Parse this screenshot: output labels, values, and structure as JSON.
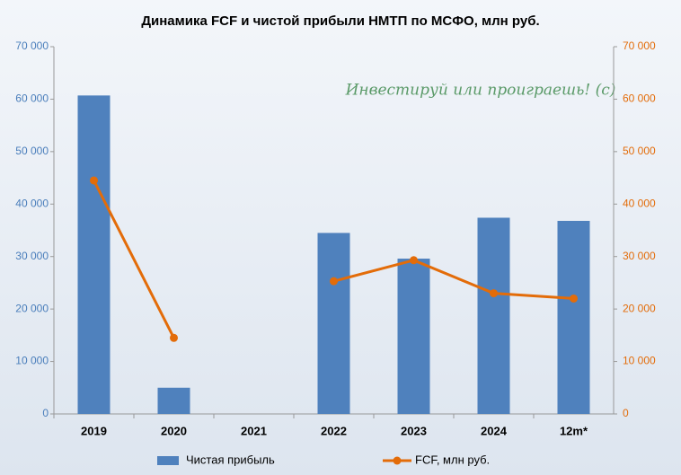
{
  "chart_data": {
    "type": "bar",
    "title": "Динамика FCF и чистой прибыли НМТП по МСФО, млн руб.",
    "annotation": "Инвестируй или проиграешь! (с)",
    "categories": [
      "2019",
      "2020",
      "2021",
      "2022",
      "2023",
      "2024",
      "12m*"
    ],
    "series": [
      {
        "name": "Чистая прибыль",
        "type": "bar",
        "color": "#4f81bd",
        "values": [
          60700,
          5000,
          null,
          34500,
          29600,
          37400,
          36800
        ]
      },
      {
        "name": "FCF, млн руб.",
        "type": "line",
        "axis": "y2",
        "color": "#e36c09",
        "values": [
          44500,
          14500,
          null,
          25300,
          29300,
          23000,
          22000
        ]
      }
    ],
    "ylim": [
      0,
      70000
    ],
    "yticks": [
      0,
      {
        "value": 10000,
        "label": "10 000"
      },
      {
        "value": 20000,
        "label": "20 000"
      },
      {
        "value": 30000,
        "label": "30 000"
      },
      {
        "value": 40000,
        "label": "40 000"
      },
      {
        "value": 50000,
        "label": "50 000"
      },
      {
        "value": 60000,
        "label": "60 000"
      },
      {
        "value": 70000,
        "label": "70 000"
      }
    ],
    "y2lim": [
      0,
      70000
    ],
    "y2ticks": [
      0,
      {
        "value": 10000,
        "label": "10 000"
      },
      {
        "value": 20000,
        "label": "20 000"
      },
      {
        "value": 30000,
        "label": "30 000"
      },
      {
        "value": 40000,
        "label": "40 000"
      },
      {
        "value": 50000,
        "label": "50 000"
      },
      {
        "value": 60000,
        "label": "60 000"
      },
      {
        "value": 70000,
        "label": "70 000"
      }
    ],
    "grid": false,
    "legend": "bottom"
  }
}
